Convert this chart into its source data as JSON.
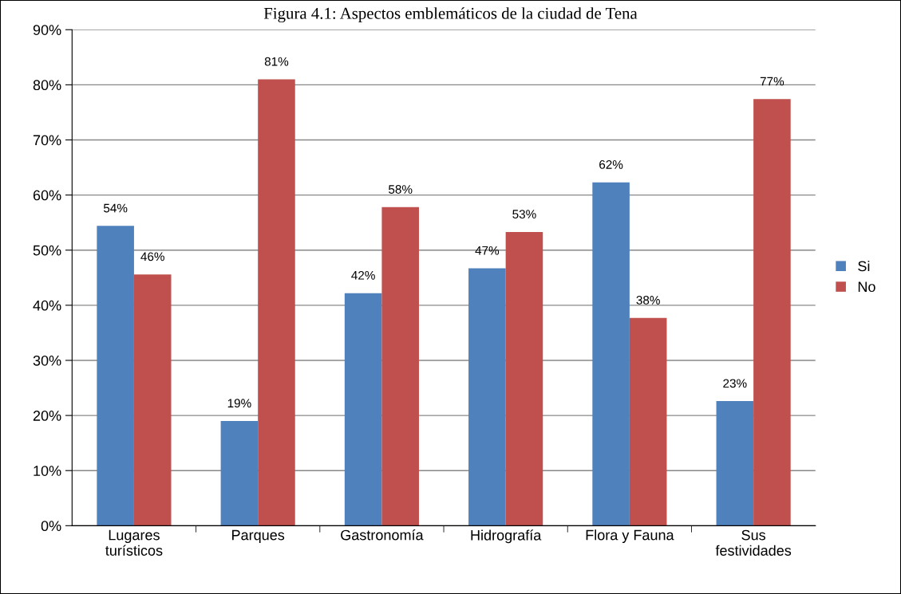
{
  "chart_data": {
    "type": "bar",
    "title": "Figura 4.1: Aspectos emblemáticos de la ciudad de Tena",
    "categories": [
      "Lugares\nturísticos",
      "Parques",
      "Gastronomía",
      "Hidrografía",
      "Flora y Fauna",
      "Sus\nfestividades"
    ],
    "series": [
      {
        "name": "Si",
        "color": "#4f81bd",
        "values": [
          54.4,
          19.0,
          42.2,
          46.7,
          62.3,
          22.6
        ],
        "value_labels": [
          "54%",
          "19%",
          "42%",
          "47%",
          "62%",
          "23%"
        ]
      },
      {
        "name": "No",
        "color": "#c0504d",
        "values": [
          45.6,
          81.0,
          57.8,
          53.3,
          37.7,
          77.4
        ],
        "value_labels": [
          "46%",
          "81%",
          "58%",
          "53%",
          "38%",
          "77%"
        ]
      }
    ],
    "ylim": [
      0,
      90
    ],
    "yticks": [
      {
        "value": 0,
        "label": "0%"
      },
      {
        "value": 10,
        "label": "10%"
      },
      {
        "value": 20,
        "label": "20%"
      },
      {
        "value": 30,
        "label": "30%"
      },
      {
        "value": 40,
        "label": "40%"
      },
      {
        "value": 50,
        "label": "50%"
      },
      {
        "value": 60,
        "label": "60%"
      },
      {
        "value": 70,
        "label": "70%"
      },
      {
        "value": 80,
        "label": "80%"
      },
      {
        "value": 90,
        "label": "90%"
      }
    ],
    "grid": "y",
    "legend": "right"
  }
}
